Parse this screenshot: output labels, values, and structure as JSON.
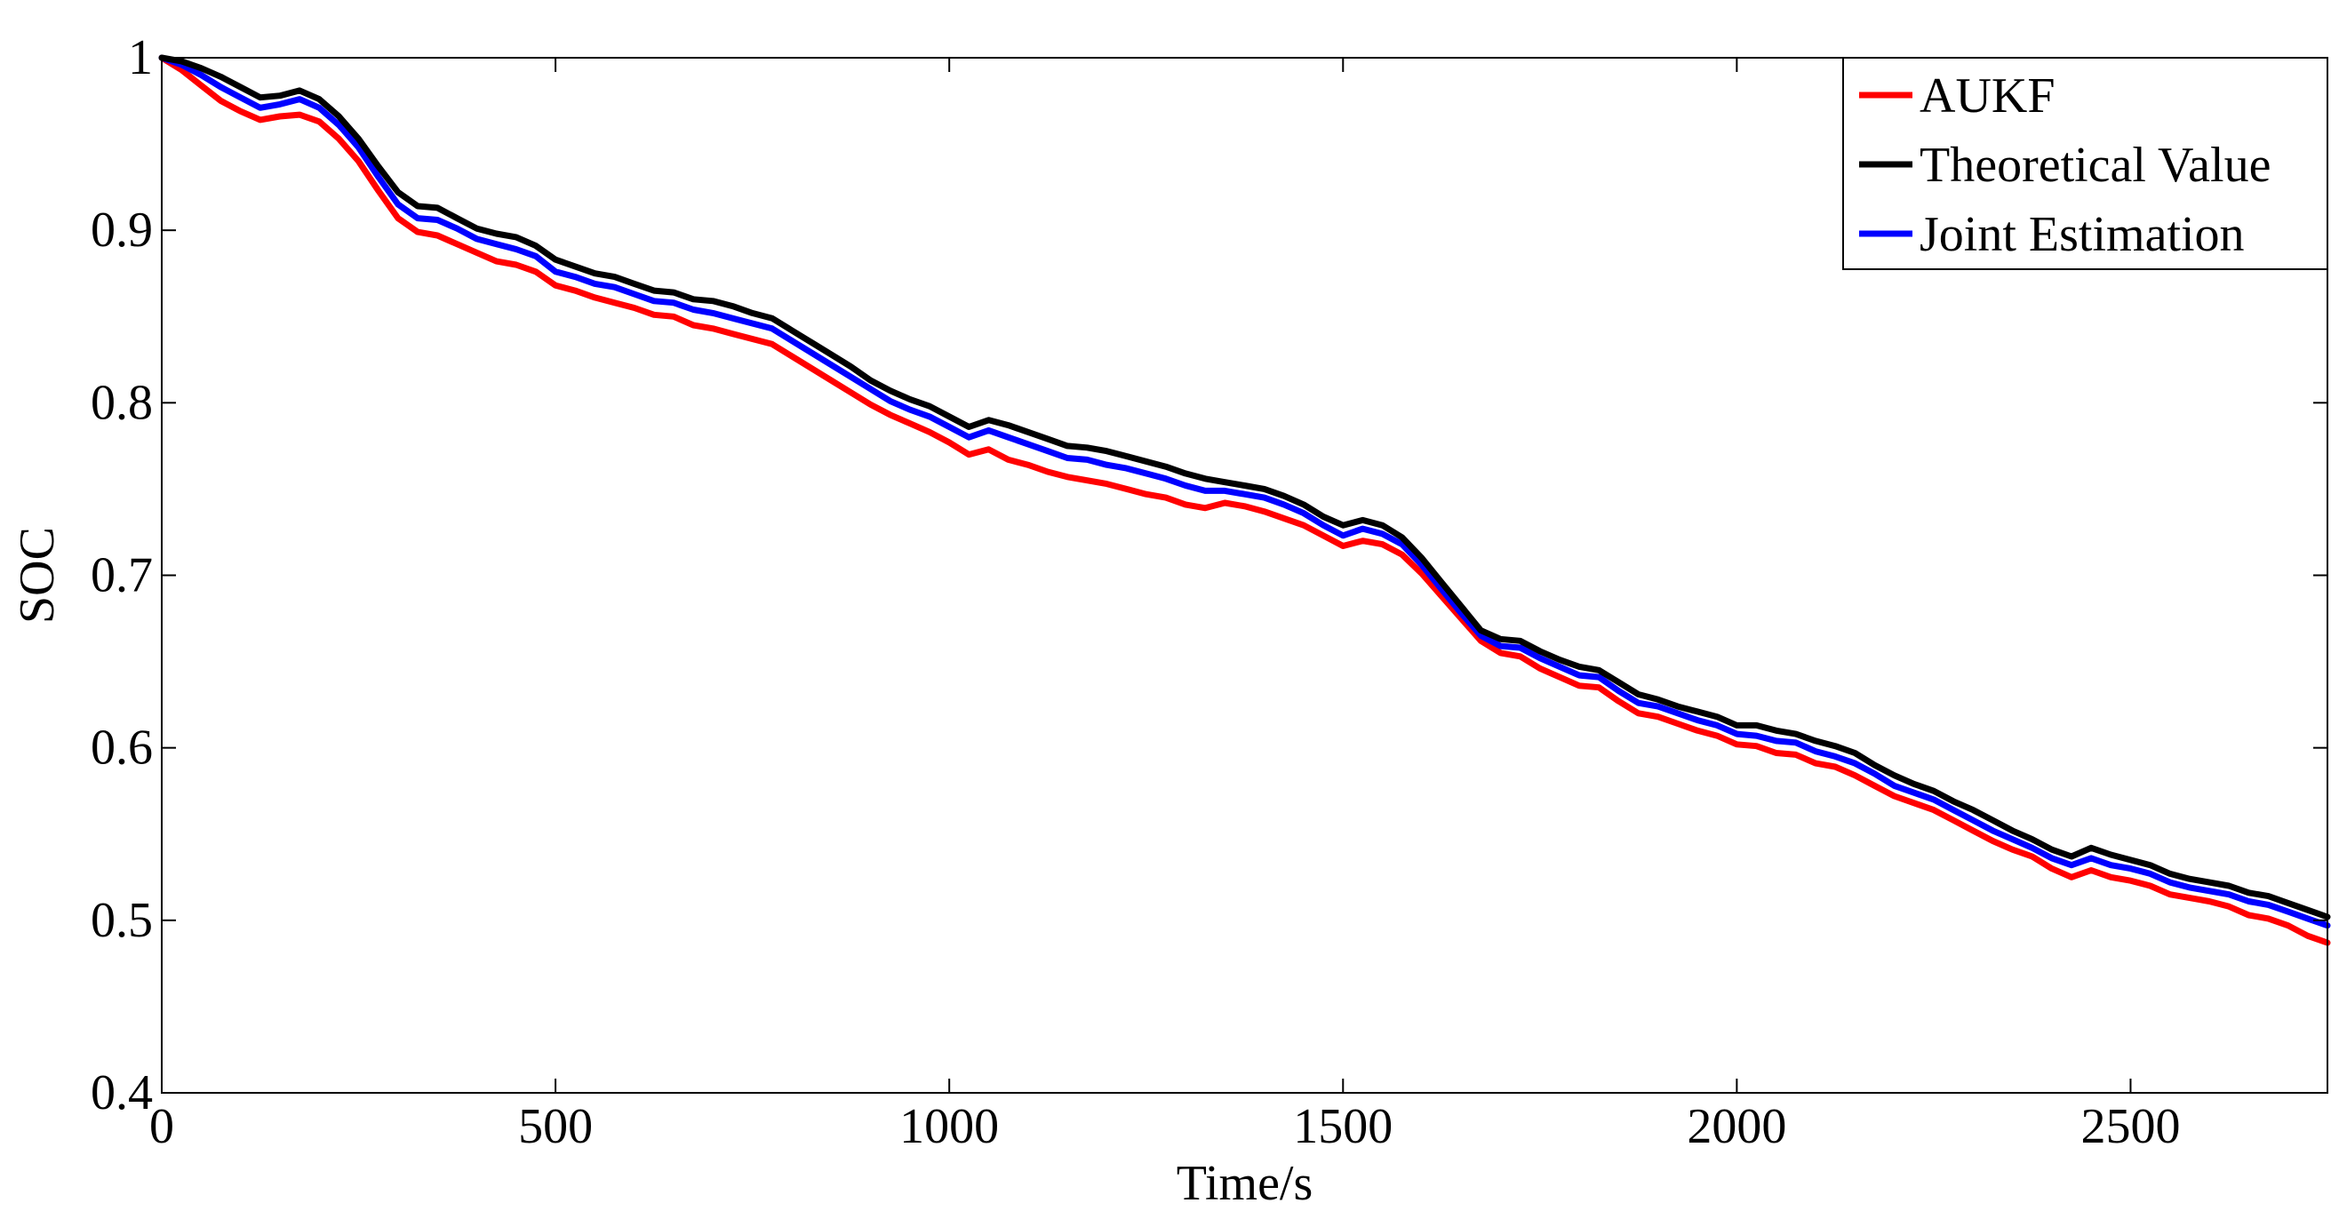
{
  "chart_data": {
    "type": "line",
    "title": "",
    "xlabel": "Time/s",
    "ylabel": "SOC",
    "xlim": [
      0,
      2750
    ],
    "ylim": [
      0.4,
      1.0
    ],
    "xticks": [
      0,
      500,
      1000,
      1500,
      2000,
      2500
    ],
    "xtick_labels": [
      "0",
      "500",
      "1000",
      "1500",
      "2000",
      "2500"
    ],
    "yticks": [
      0.4,
      0.5,
      0.6,
      0.7,
      0.8,
      0.9,
      1.0
    ],
    "ytick_labels": [
      "0.4",
      "0.5",
      "0.6",
      "0.7",
      "0.8",
      "0.9",
      "1"
    ],
    "grid": false,
    "legend_position": "top-right",
    "x": [
      0,
      25,
      50,
      75,
      100,
      125,
      150,
      175,
      200,
      225,
      250,
      275,
      300,
      325,
      350,
      375,
      400,
      425,
      450,
      475,
      500,
      525,
      550,
      575,
      600,
      625,
      650,
      675,
      700,
      725,
      750,
      775,
      800,
      825,
      850,
      875,
      900,
      925,
      950,
      975,
      1000,
      1025,
      1050,
      1075,
      1100,
      1125,
      1150,
      1175,
      1200,
      1225,
      1250,
      1275,
      1300,
      1325,
      1350,
      1375,
      1400,
      1425,
      1450,
      1475,
      1500,
      1525,
      1550,
      1575,
      1600,
      1625,
      1650,
      1675,
      1700,
      1725,
      1750,
      1775,
      1800,
      1825,
      1850,
      1875,
      1900,
      1925,
      1950,
      1975,
      2000,
      2025,
      2050,
      2075,
      2100,
      2125,
      2150,
      2175,
      2200,
      2225,
      2250,
      2275,
      2300,
      2325,
      2350,
      2375,
      2400,
      2425,
      2450,
      2475,
      2500,
      2525,
      2550,
      2575,
      2600,
      2625,
      2650,
      2675,
      2700,
      2725,
      2750
    ],
    "series": [
      {
        "name": "AUKF",
        "color": "#ff0000",
        "values": [
          1.0,
          0.993,
          0.984,
          0.975,
          0.969,
          0.964,
          0.966,
          0.967,
          0.963,
          0.953,
          0.94,
          0.923,
          0.907,
          0.899,
          0.897,
          0.892,
          0.887,
          0.882,
          0.88,
          0.876,
          0.868,
          0.865,
          0.861,
          0.858,
          0.855,
          0.851,
          0.85,
          0.845,
          0.843,
          0.84,
          0.837,
          0.834,
          0.827,
          0.82,
          0.813,
          0.806,
          0.799,
          0.793,
          0.788,
          0.783,
          0.777,
          0.77,
          0.773,
          0.767,
          0.764,
          0.76,
          0.757,
          0.755,
          0.753,
          0.75,
          0.747,
          0.745,
          0.741,
          0.739,
          0.742,
          0.74,
          0.737,
          0.733,
          0.729,
          0.723,
          0.717,
          0.72,
          0.718,
          0.712,
          0.701,
          0.688,
          0.675,
          0.662,
          0.655,
          0.653,
          0.646,
          0.641,
          0.636,
          0.635,
          0.627,
          0.62,
          0.618,
          0.614,
          0.61,
          0.607,
          0.602,
          0.601,
          0.597,
          0.596,
          0.591,
          0.589,
          0.584,
          0.578,
          0.572,
          0.568,
          0.564,
          0.558,
          0.552,
          0.546,
          0.541,
          0.537,
          0.53,
          0.525,
          0.529,
          0.525,
          0.523,
          0.52,
          0.515,
          0.513,
          0.511,
          0.508,
          0.503,
          0.501,
          0.497,
          0.491,
          0.487
        ]
      },
      {
        "name": "Theoretical Value",
        "color": "#000000",
        "values": [
          1.0,
          0.998,
          0.994,
          0.989,
          0.983,
          0.977,
          0.978,
          0.981,
          0.976,
          0.966,
          0.953,
          0.937,
          0.922,
          0.914,
          0.913,
          0.907,
          0.901,
          0.898,
          0.896,
          0.891,
          0.883,
          0.879,
          0.875,
          0.873,
          0.869,
          0.865,
          0.864,
          0.86,
          0.859,
          0.856,
          0.852,
          0.849,
          0.842,
          0.835,
          0.828,
          0.821,
          0.813,
          0.807,
          0.802,
          0.798,
          0.792,
          0.786,
          0.79,
          0.787,
          0.783,
          0.779,
          0.775,
          0.774,
          0.772,
          0.769,
          0.766,
          0.763,
          0.759,
          0.756,
          0.754,
          0.752,
          0.75,
          0.746,
          0.741,
          0.734,
          0.729,
          0.732,
          0.729,
          0.722,
          0.71,
          0.696,
          0.682,
          0.668,
          0.663,
          0.662,
          0.656,
          0.651,
          0.647,
          0.645,
          0.638,
          0.631,
          0.628,
          0.624,
          0.621,
          0.618,
          0.613,
          0.613,
          0.61,
          0.608,
          0.604,
          0.601,
          0.597,
          0.59,
          0.584,
          0.579,
          0.575,
          0.569,
          0.564,
          0.558,
          0.552,
          0.547,
          0.541,
          0.537,
          0.542,
          0.538,
          0.535,
          0.532,
          0.527,
          0.524,
          0.522,
          0.52,
          0.516,
          0.514,
          0.51,
          0.506,
          0.502
        ]
      },
      {
        "name": "Joint Estimation",
        "color": "#0000ff",
        "values": [
          1.0,
          0.996,
          0.99,
          0.983,
          0.977,
          0.971,
          0.973,
          0.976,
          0.971,
          0.961,
          0.948,
          0.931,
          0.915,
          0.907,
          0.906,
          0.901,
          0.895,
          0.892,
          0.889,
          0.885,
          0.876,
          0.873,
          0.869,
          0.867,
          0.863,
          0.859,
          0.858,
          0.854,
          0.852,
          0.849,
          0.846,
          0.843,
          0.836,
          0.829,
          0.822,
          0.815,
          0.808,
          0.801,
          0.796,
          0.792,
          0.786,
          0.78,
          0.784,
          0.78,
          0.776,
          0.772,
          0.768,
          0.767,
          0.764,
          0.762,
          0.759,
          0.756,
          0.752,
          0.749,
          0.749,
          0.747,
          0.745,
          0.741,
          0.736,
          0.729,
          0.723,
          0.727,
          0.724,
          0.718,
          0.706,
          0.692,
          0.678,
          0.665,
          0.659,
          0.658,
          0.652,
          0.647,
          0.642,
          0.641,
          0.633,
          0.626,
          0.624,
          0.62,
          0.616,
          0.613,
          0.608,
          0.607,
          0.604,
          0.603,
          0.598,
          0.595,
          0.591,
          0.585,
          0.578,
          0.574,
          0.57,
          0.564,
          0.558,
          0.552,
          0.547,
          0.542,
          0.536,
          0.532,
          0.536,
          0.532,
          0.53,
          0.527,
          0.522,
          0.519,
          0.517,
          0.515,
          0.511,
          0.509,
          0.505,
          0.501,
          0.497
        ]
      }
    ]
  }
}
